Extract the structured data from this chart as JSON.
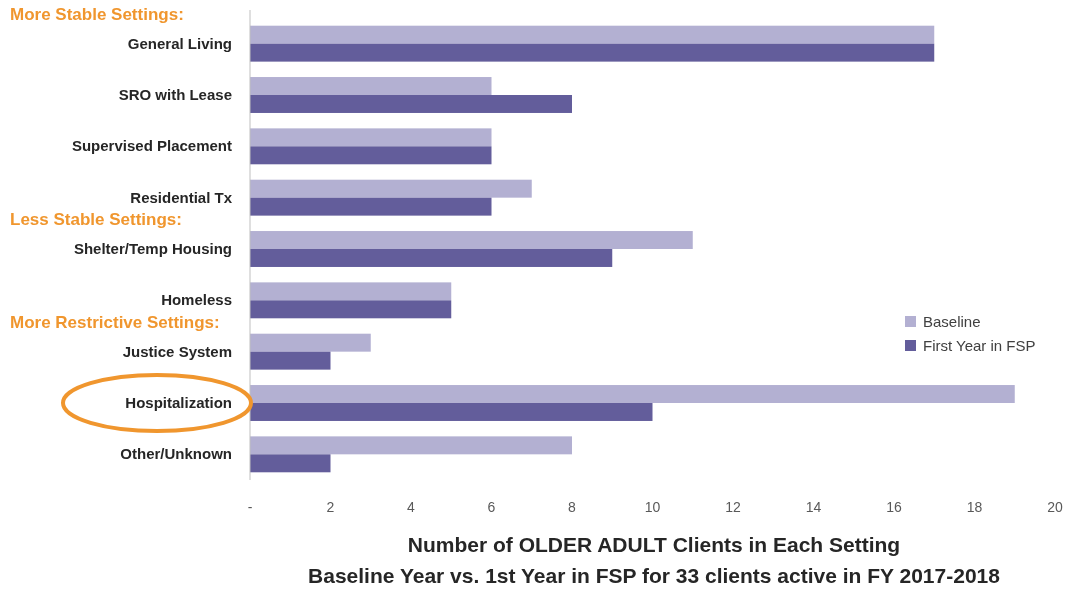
{
  "chart_data": {
    "type": "bar",
    "orientation": "horizontal",
    "xlabel": "Number of OLDER ADULT Clients in Each Setting",
    "subtitle": "Baseline Year vs. 1st Year in FSP for 33 clients active in FY 2017-2018",
    "categories": [
      "General Living",
      "SRO with Lease",
      "Supervised Placement",
      "Residential Tx",
      "Shelter/Temp Housing",
      "Homeless",
      "Justice System",
      "Hospitalization",
      "Other/Unknown"
    ],
    "series": [
      {
        "name": "Baseline",
        "color": "#b3b0d2",
        "values": [
          17,
          6,
          6,
          7,
          11,
          5,
          3,
          19,
          8
        ]
      },
      {
        "name": "First Year in FSP",
        "color": "#635d9b",
        "values": [
          17,
          8,
          6,
          6,
          9,
          5,
          2,
          10,
          2
        ]
      }
    ],
    "xlim": [
      0,
      20
    ],
    "xticks": [
      {
        "value": 0,
        "label": "-"
      },
      2,
      4,
      6,
      8,
      10,
      12,
      14,
      16,
      18,
      20
    ],
    "legend": "right",
    "grid": false,
    "annotations": [
      "More Stable Settings:",
      "Less Stable Settings:",
      "More Restrictive Settings:"
    ]
  }
}
